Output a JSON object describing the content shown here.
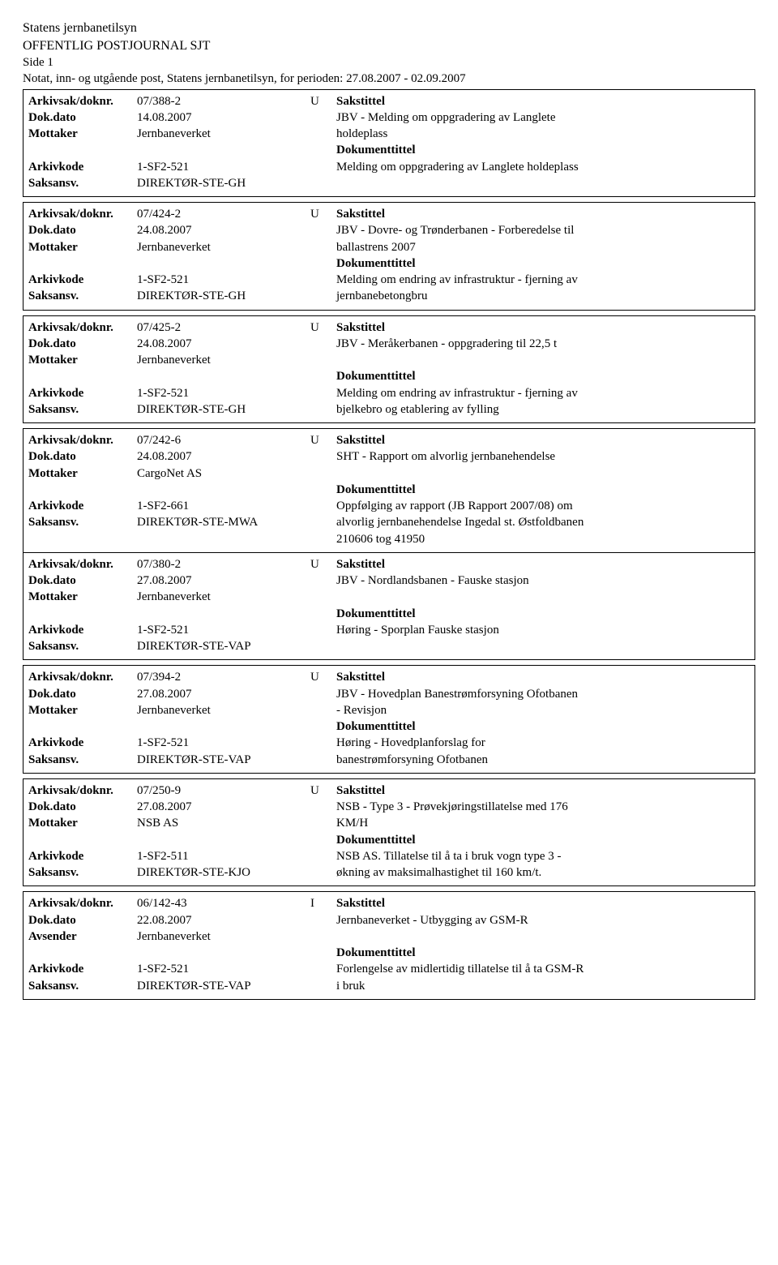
{
  "header": {
    "org": "Statens jernbanetilsyn",
    "journal": "OFFENTLIG POSTJOURNAL SJT",
    "page": "Side 1",
    "period_line": "Notat, inn- og utgående post, Statens jernbanetilsyn, for perioden: 27.08.2007 - 02.09.2007"
  },
  "labels": {
    "arkivsak": "Arkivsak/doknr.",
    "dokdato": "Dok.dato",
    "mottaker": "Mottaker",
    "avsender": "Avsender",
    "arkivkode": "Arkivkode",
    "saksansv": "Saksansv.",
    "sakstittel": "Sakstittel",
    "dokumenttittel": "Dokumenttittel"
  },
  "entries": [
    {
      "arkivsak": "07/388-2",
      "direction": "U",
      "dokdato": "14.08.2007",
      "party_label": "Mottaker",
      "party": "Jernbaneverket",
      "sakstittel_lines": [
        "JBV - Melding om oppgradering av Langlete",
        "holdeplass"
      ],
      "arkivkode": "1-SF2-521",
      "saksansv": "DIREKTØR-STE-GH",
      "dokumenttittel_lines": [
        "Melding om oppgradering av Langlete holdeplass"
      ]
    },
    {
      "arkivsak": "07/424-2",
      "direction": "U",
      "dokdato": "24.08.2007",
      "party_label": "Mottaker",
      "party": "Jernbaneverket",
      "sakstittel_lines": [
        "JBV - Dovre- og Trønderbanen - Forberedelse til",
        "ballastrens 2007"
      ],
      "arkivkode": "1-SF2-521",
      "saksansv": "DIREKTØR-STE-GH",
      "dokumenttittel_lines": [
        "Melding om endring av infrastruktur - fjerning av",
        "jernbanebetongbru"
      ]
    },
    {
      "arkivsak": "07/425-2",
      "direction": "U",
      "dokdato": "24.08.2007",
      "party_label": "Mottaker",
      "party": "Jernbaneverket",
      "sakstittel_lines": [
        "JBV - Meråkerbanen - oppgradering til 22,5 t",
        ""
      ],
      "arkivkode": "1-SF2-521",
      "saksansv": "DIREKTØR-STE-GH",
      "dokumenttittel_lines": [
        "Melding om endring av infrastruktur - fjerning av",
        "bjelkebro og etablering av fylling"
      ]
    },
    {
      "arkivsak": "07/242-6",
      "direction": "U",
      "dokdato": "24.08.2007",
      "party_label": "Mottaker",
      "party": "CargoNet AS",
      "sakstittel_lines": [
        "SHT - Rapport om alvorlig jernbanehendelse",
        ""
      ],
      "arkivkode": "1-SF2-661",
      "saksansv": "DIREKTØR-STE-MWA",
      "dokumenttittel_lines": [
        "Oppfølging av rapport (JB Rapport 2007/08) om",
        "alvorlig jernbanehendelse Ingedal st. Østfoldbanen",
        "210606 tog 41950"
      ],
      "tight_after": true
    },
    {
      "arkivsak": "07/380-2",
      "direction": "U",
      "dokdato": "27.08.2007",
      "party_label": "Mottaker",
      "party": "Jernbaneverket",
      "sakstittel_lines": [
        "JBV - Nordlandsbanen - Fauske stasjon",
        ""
      ],
      "arkivkode": "1-SF2-521",
      "saksansv": "DIREKTØR-STE-VAP",
      "dokumenttittel_lines": [
        "Høring - Sporplan Fauske stasjon"
      ]
    },
    {
      "arkivsak": "07/394-2",
      "direction": "U",
      "dokdato": "27.08.2007",
      "party_label": "Mottaker",
      "party": "Jernbaneverket",
      "sakstittel_lines": [
        "JBV - Hovedplan Banestrømforsyning Ofotbanen",
        "- Revisjon"
      ],
      "arkivkode": "1-SF2-521",
      "saksansv": "DIREKTØR-STE-VAP",
      "dokumenttittel_lines": [
        "Høring - Hovedplanforslag for",
        "banestrømforsyning Ofotbanen"
      ]
    },
    {
      "arkivsak": "07/250-9",
      "direction": "U",
      "dokdato": "27.08.2007",
      "party_label": "Mottaker",
      "party": "NSB AS",
      "sakstittel_lines": [
        "NSB - Type 3 - Prøvekjøringstillatelse med 176",
        "KM/H"
      ],
      "arkivkode": "1-SF2-511",
      "saksansv": "DIREKTØR-STE-KJO",
      "dokumenttittel_lines": [
        "NSB AS. Tillatelse til å ta i bruk vogn type 3 -",
        "økning av maksimalhastighet til 160 km/t."
      ]
    },
    {
      "arkivsak": "06/142-43",
      "direction": "I",
      "dokdato": "22.08.2007",
      "party_label": "Avsender",
      "party": "Jernbaneverket",
      "sakstittel_lines": [
        "Jernbaneverket - Utbygging av GSM-R",
        ""
      ],
      "arkivkode": "1-SF2-521",
      "saksansv": "DIREKTØR-STE-VAP",
      "dokumenttittel_lines": [
        "Forlengelse av midlertidig tillatelse til å ta GSM-R",
        "i bruk"
      ]
    }
  ]
}
